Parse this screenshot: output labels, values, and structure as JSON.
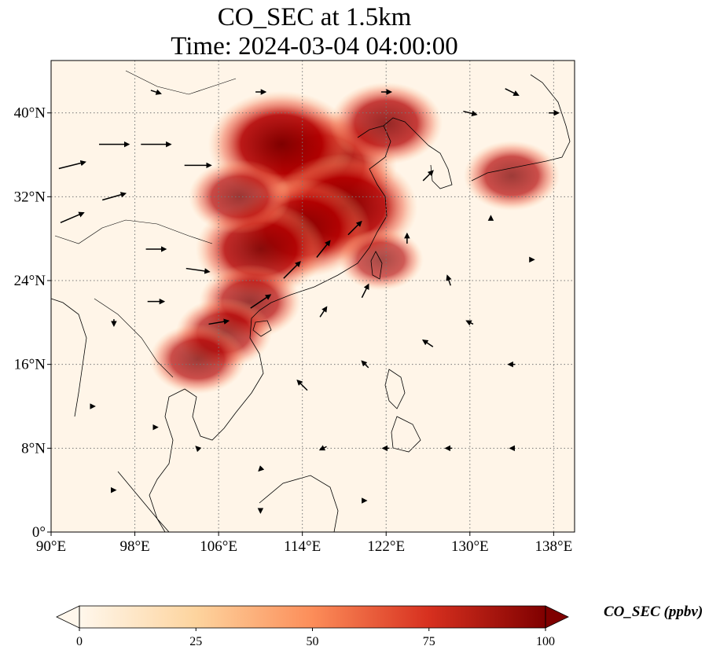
{
  "title": {
    "line1": "CO_SEC at 1.5km",
    "line2": "Time: 2024-03-04 04:00:00"
  },
  "map": {
    "lon_range": [
      90,
      140
    ],
    "lat_range": [
      0,
      45
    ],
    "gridline_style": "dotted",
    "lon_ticks": [
      {
        "value": 90,
        "label": "90°E"
      },
      {
        "value": 98,
        "label": "98°E"
      },
      {
        "value": 106,
        "label": "106°E"
      },
      {
        "value": 114,
        "label": "114°E"
      },
      {
        "value": 122,
        "label": "122°E"
      },
      {
        "value": 130,
        "label": "130°E"
      },
      {
        "value": 138,
        "label": "138°E"
      }
    ],
    "lat_ticks": [
      {
        "value": 0,
        "label": "0°"
      },
      {
        "value": 8,
        "label": "8°N"
      },
      {
        "value": 16,
        "label": "16°N"
      },
      {
        "value": 24,
        "label": "24°N"
      },
      {
        "value": 32,
        "label": "32°N"
      },
      {
        "value": 40,
        "label": "40°N"
      }
    ]
  },
  "colorbar": {
    "label": "CO_SEC (ppbv)",
    "min": 0,
    "max": 100,
    "extend": "both",
    "colormap": "OrRd",
    "colors": [
      "#fff7ec",
      "#fdd49e",
      "#fc8d59",
      "#d7301f",
      "#7f0000"
    ],
    "ticks": [
      {
        "value": 0,
        "label": "0"
      },
      {
        "value": 25,
        "label": "25"
      },
      {
        "value": 50,
        "label": "50"
      },
      {
        "value": 75,
        "label": "75"
      },
      {
        "value": 100,
        "label": "100"
      }
    ]
  },
  "chart_data": {
    "type": "heatmap",
    "field": "CO_SEC",
    "plume_regions": [
      {
        "lon": 116,
        "lat": 35,
        "value": 100
      },
      {
        "lon": 112,
        "lat": 37,
        "value": 100
      },
      {
        "lon": 118,
        "lat": 31,
        "value": 100
      },
      {
        "lon": 114,
        "lat": 29,
        "value": 90
      },
      {
        "lon": 110,
        "lat": 27,
        "value": 85
      },
      {
        "lon": 108,
        "lat": 32,
        "value": 60
      },
      {
        "lon": 109,
        "lat": 22,
        "value": 60
      },
      {
        "lon": 106.5,
        "lat": 19,
        "value": 55
      },
      {
        "lon": 104,
        "lat": 16.5,
        "value": 55
      },
      {
        "lon": 122,
        "lat": 39,
        "value": 70
      },
      {
        "lon": 134,
        "lat": 34,
        "value": 55
      },
      {
        "lon": 121.5,
        "lat": 26,
        "value": 45
      }
    ],
    "wind_vectors": [
      {
        "lon": 92,
        "lat": 35,
        "u": 8,
        "v": 2
      },
      {
        "lon": 96,
        "lat": 37,
        "u": 9,
        "v": 0
      },
      {
        "lon": 100,
        "lat": 37,
        "u": 9,
        "v": 0
      },
      {
        "lon": 104,
        "lat": 35,
        "u": 8,
        "v": 0
      },
      {
        "lon": 92,
        "lat": 30,
        "u": 7,
        "v": 3
      },
      {
        "lon": 96,
        "lat": 32,
        "u": 7,
        "v": 2
      },
      {
        "lon": 100,
        "lat": 27,
        "u": 6,
        "v": 0
      },
      {
        "lon": 104,
        "lat": 25,
        "u": 7,
        "v": -1
      },
      {
        "lon": 100,
        "lat": 22,
        "u": 5,
        "v": 0
      },
      {
        "lon": 106,
        "lat": 20,
        "u": 6,
        "v": 1
      },
      {
        "lon": 110,
        "lat": 22,
        "u": 6,
        "v": 4
      },
      {
        "lon": 113,
        "lat": 25,
        "u": 5,
        "v": 5
      },
      {
        "lon": 116,
        "lat": 27,
        "u": 4,
        "v": 5
      },
      {
        "lon": 119,
        "lat": 29,
        "u": 4,
        "v": 4
      },
      {
        "lon": 116,
        "lat": 21,
        "u": 2,
        "v": 3
      },
      {
        "lon": 120,
        "lat": 23,
        "u": 2,
        "v": 4
      },
      {
        "lon": 124,
        "lat": 28,
        "u": 0,
        "v": 3
      },
      {
        "lon": 128,
        "lat": 24,
        "u": -1,
        "v": 3
      },
      {
        "lon": 126,
        "lat": 18,
        "u": -3,
        "v": 2
      },
      {
        "lon": 120,
        "lat": 16,
        "u": -2,
        "v": 2
      },
      {
        "lon": 114,
        "lat": 14,
        "u": -3,
        "v": 3
      },
      {
        "lon": 130,
        "lat": 20,
        "u": -2,
        "v": 1
      },
      {
        "lon": 134,
        "lat": 16,
        "u": -2,
        "v": 0
      },
      {
        "lon": 126,
        "lat": 34,
        "u": 3,
        "v": 3
      },
      {
        "lon": 130,
        "lat": 40,
        "u": 4,
        "v": -1
      },
      {
        "lon": 134,
        "lat": 42,
        "u": 4,
        "v": -2
      },
      {
        "lon": 138,
        "lat": 40,
        "u": 3,
        "v": 0
      },
      {
        "lon": 122,
        "lat": 42,
        "u": 3,
        "v": 0
      },
      {
        "lon": 110,
        "lat": 42,
        "u": 3,
        "v": 0
      },
      {
        "lon": 100,
        "lat": 42,
        "u": 3,
        "v": -1
      },
      {
        "lon": 96,
        "lat": 20,
        "u": 0,
        "v": -2
      },
      {
        "lon": 94,
        "lat": 12,
        "u": 1,
        "v": 0
      },
      {
        "lon": 100,
        "lat": 10,
        "u": 1,
        "v": 0
      },
      {
        "lon": 104,
        "lat": 8,
        "u": -1,
        "v": 1
      },
      {
        "lon": 110,
        "lat": 6,
        "u": -1,
        "v": -1
      },
      {
        "lon": 116,
        "lat": 8,
        "u": -2,
        "v": -1
      },
      {
        "lon": 122,
        "lat": 8,
        "u": -2,
        "v": 0
      },
      {
        "lon": 128,
        "lat": 8,
        "u": -2,
        "v": 0
      },
      {
        "lon": 134,
        "lat": 8,
        "u": -1,
        "v": 0
      },
      {
        "lon": 110,
        "lat": 2,
        "u": 0,
        "v": -1
      },
      {
        "lon": 120,
        "lat": 3,
        "u": 0,
        "v": 0
      },
      {
        "lon": 96,
        "lat": 4,
        "u": 1,
        "v": 0
      },
      {
        "lon": 132,
        "lat": 30,
        "u": 0,
        "v": 1
      },
      {
        "lon": 136,
        "lat": 26,
        "u": 0,
        "v": 0
      }
    ]
  }
}
